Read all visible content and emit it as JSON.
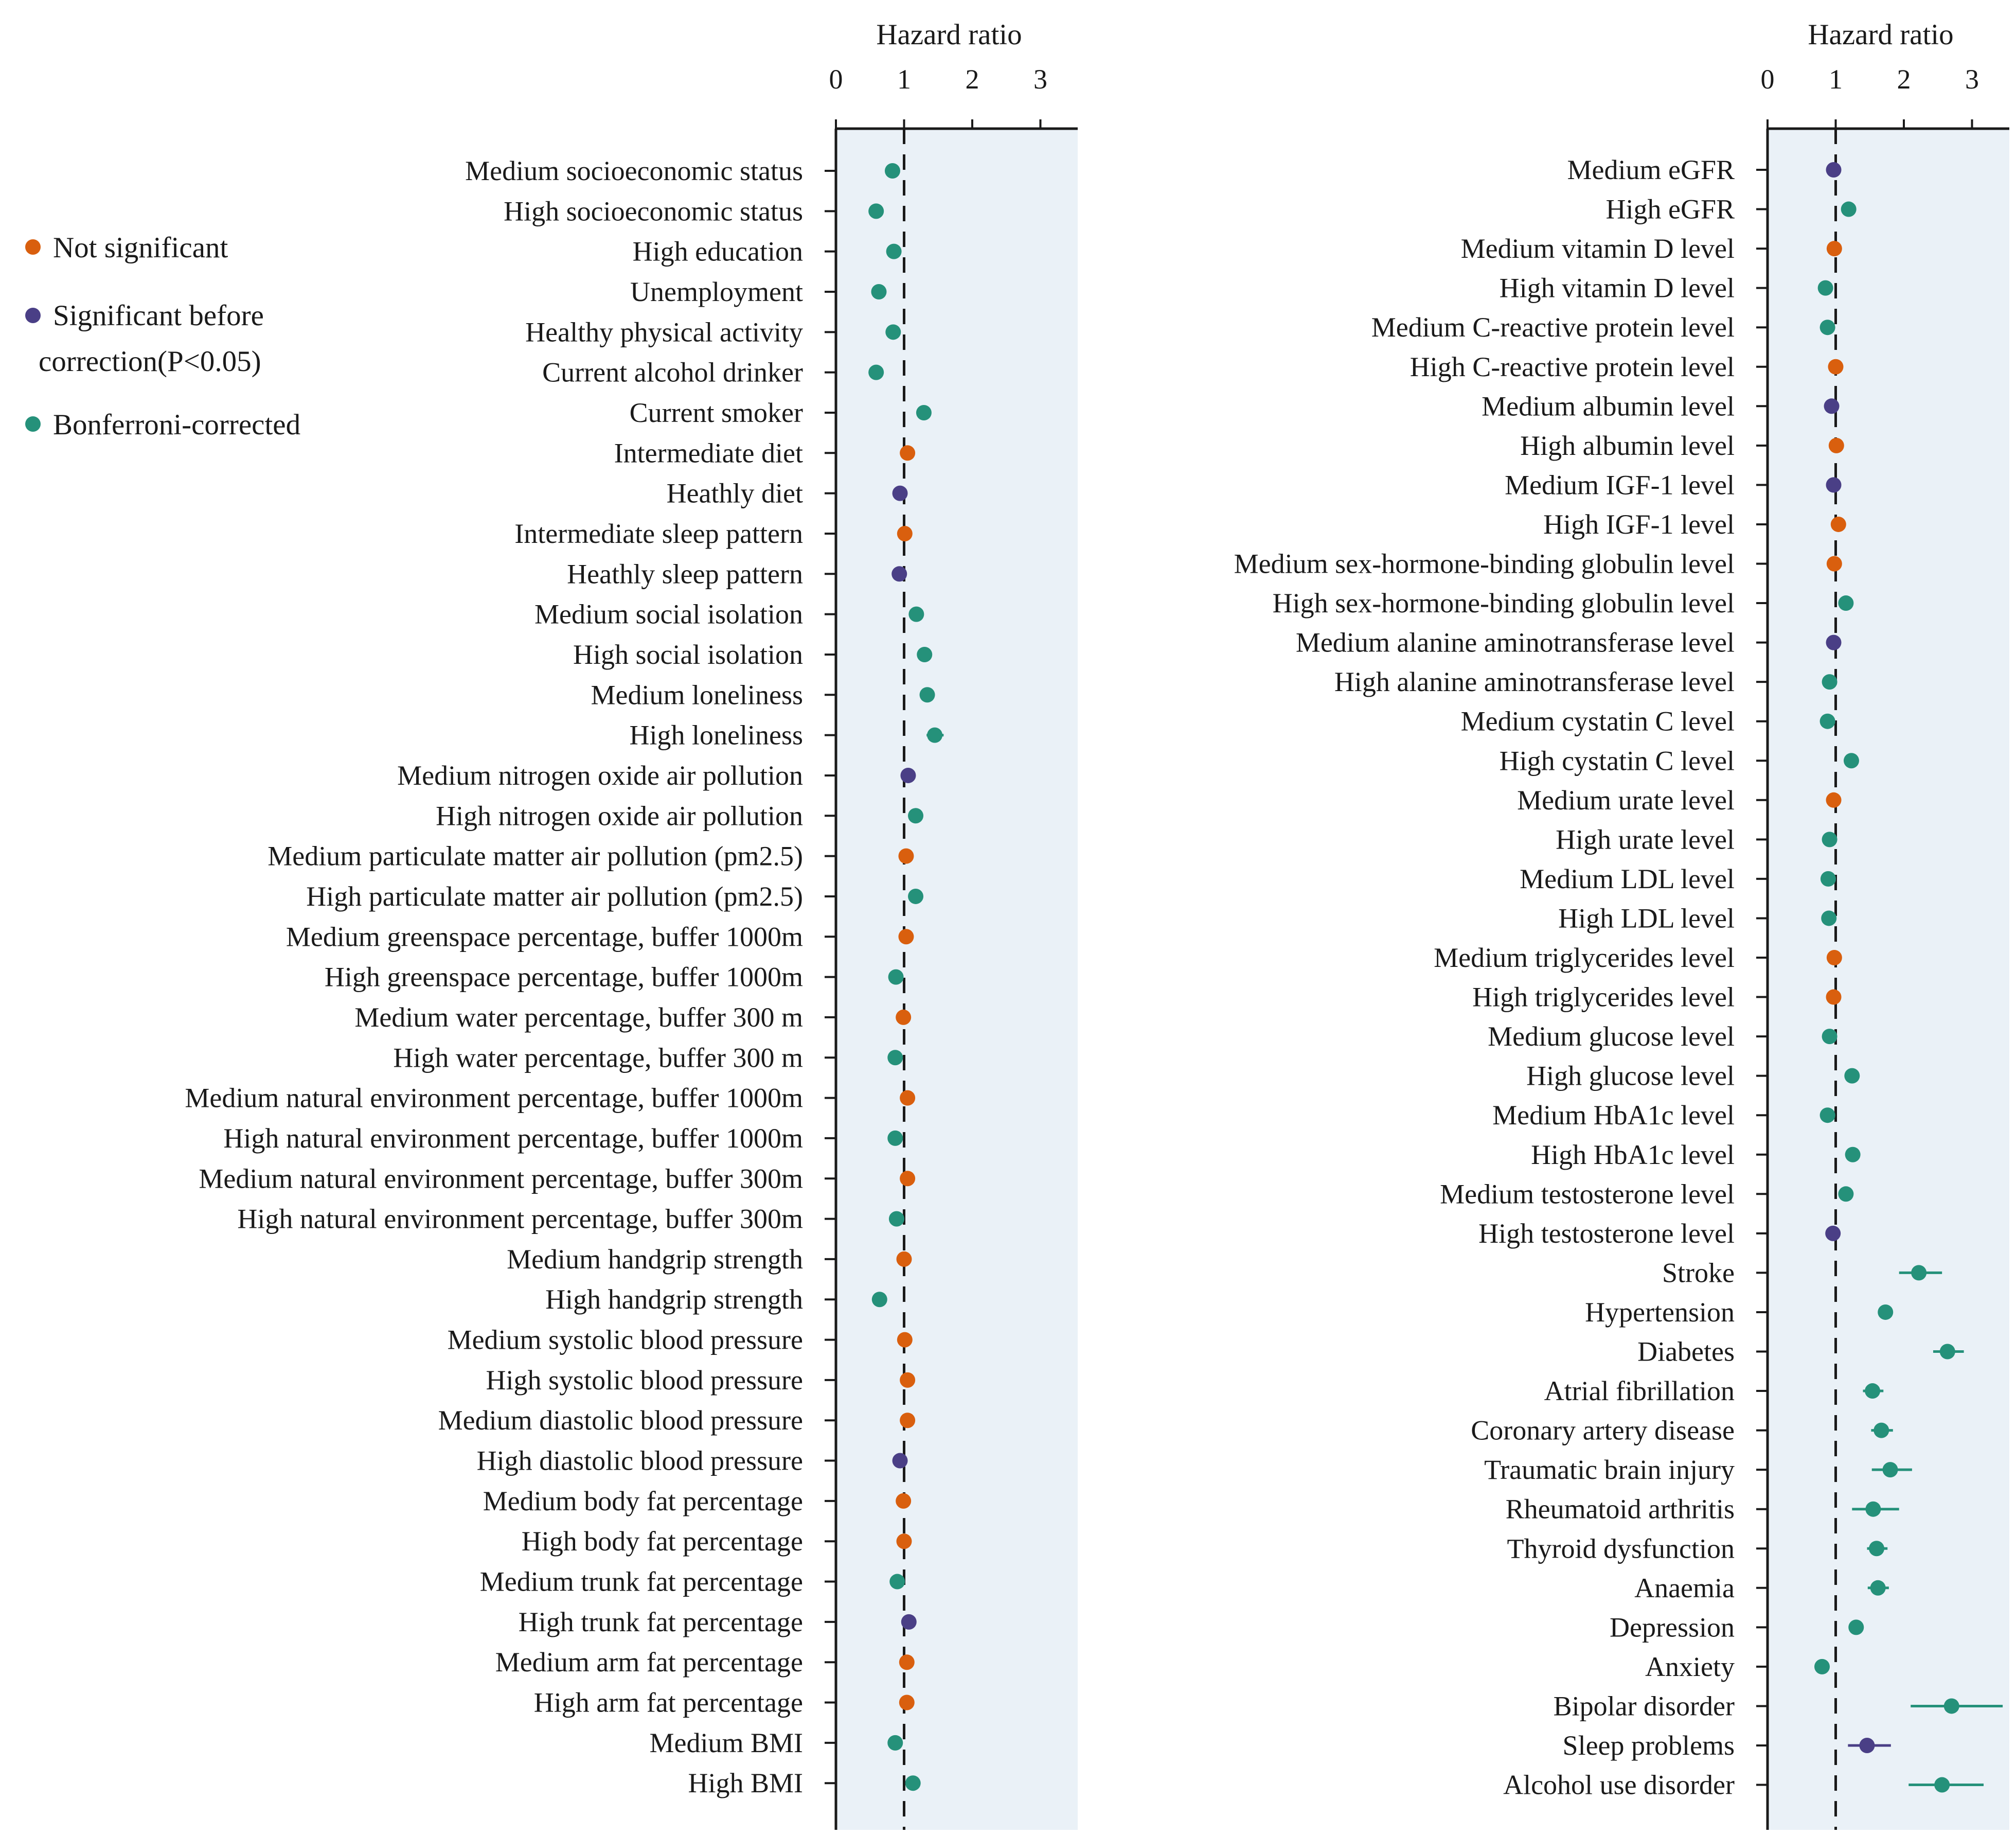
{
  "legend": {
    "items": [
      {
        "label": "Not significant",
        "key": "ns"
      },
      {
        "label": "Significant before correction(P<0.05)",
        "key": "sig"
      },
      {
        "label": "Bonferroni-corrected",
        "key": "bonf"
      }
    ]
  },
  "colors": {
    "ns": "#d95f0e",
    "sig": "#4a3f86",
    "bonf": "#25917a",
    "panel_bg": "#eaf1f7",
    "axis": "#1a1a1a"
  },
  "chart_data": [
    {
      "type": "forest",
      "xlabel": "Hazard ratio",
      "xlim": [
        0,
        3.5
      ],
      "xticks": [
        0,
        1,
        2,
        3
      ],
      "reference_line": 1,
      "rows": [
        {
          "label": "Medium socioeconomic status",
          "hr": 0.83,
          "lo": 0.78,
          "hi": 0.88,
          "sig": "bonf"
        },
        {
          "label": "High socioeconomic status",
          "hr": 0.59,
          "lo": 0.55,
          "hi": 0.63,
          "sig": "bonf"
        },
        {
          "label": "High education",
          "hr": 0.85,
          "lo": 0.8,
          "hi": 0.9,
          "sig": "bonf"
        },
        {
          "label": "Unemployment",
          "hr": 0.63,
          "lo": 0.58,
          "hi": 0.68,
          "sig": "bonf"
        },
        {
          "label": "Healthy physical activity",
          "hr": 0.84,
          "lo": 0.79,
          "hi": 0.89,
          "sig": "bonf"
        },
        {
          "label": "Current alcohol drinker",
          "hr": 0.59,
          "lo": 0.55,
          "hi": 0.63,
          "sig": "bonf"
        },
        {
          "label": "Current smoker",
          "hr": 1.29,
          "lo": 1.2,
          "hi": 1.38,
          "sig": "bonf"
        },
        {
          "label": "Intermediate diet",
          "hr": 1.05,
          "lo": 0.98,
          "hi": 1.12,
          "sig": "ns"
        },
        {
          "label": "Heathly diet",
          "hr": 0.94,
          "lo": 0.88,
          "hi": 1.0,
          "sig": "sig"
        },
        {
          "label": "Intermediate sleep pattern",
          "hr": 1.01,
          "lo": 0.95,
          "hi": 1.07,
          "sig": "ns"
        },
        {
          "label": "Heathly sleep pattern",
          "hr": 0.93,
          "lo": 0.87,
          "hi": 0.99,
          "sig": "sig"
        },
        {
          "label": "Medium social isolation",
          "hr": 1.18,
          "lo": 1.11,
          "hi": 1.25,
          "sig": "bonf"
        },
        {
          "label": "High social isolation",
          "hr": 1.3,
          "lo": 1.21,
          "hi": 1.39,
          "sig": "bonf"
        },
        {
          "label": "Medium loneliness",
          "hr": 1.34,
          "lo": 1.26,
          "hi": 1.42,
          "sig": "bonf"
        },
        {
          "label": "High loneliness",
          "hr": 1.45,
          "lo": 1.33,
          "hi": 1.58,
          "sig": "bonf"
        },
        {
          "label": "Medium nitrogen oxide air pollution",
          "hr": 1.06,
          "lo": 1.0,
          "hi": 1.12,
          "sig": "sig"
        },
        {
          "label": "High nitrogen oxide air pollution",
          "hr": 1.17,
          "lo": 1.09,
          "hi": 1.25,
          "sig": "bonf"
        },
        {
          "label": "Medium particulate matter air pollution (pm2.5)",
          "hr": 1.03,
          "lo": 0.97,
          "hi": 1.09,
          "sig": "ns"
        },
        {
          "label": "High particulate matter air pollution (pm2.5)",
          "hr": 1.17,
          "lo": 1.09,
          "hi": 1.25,
          "sig": "bonf"
        },
        {
          "label": "Medium greenspace percentage, buffer 1000m",
          "hr": 1.03,
          "lo": 0.97,
          "hi": 1.09,
          "sig": "ns"
        },
        {
          "label": "High greenspace percentage, buffer 1000m",
          "hr": 0.88,
          "lo": 0.82,
          "hi": 0.94,
          "sig": "bonf"
        },
        {
          "label": "Medium water percentage, buffer 300 m",
          "hr": 0.99,
          "lo": 0.93,
          "hi": 1.05,
          "sig": "ns"
        },
        {
          "label": "High water percentage, buffer 300 m",
          "hr": 0.87,
          "lo": 0.81,
          "hi": 0.93,
          "sig": "bonf"
        },
        {
          "label": "Medium natural environment percentage, buffer 1000m",
          "hr": 1.05,
          "lo": 0.98,
          "hi": 1.12,
          "sig": "ns"
        },
        {
          "label": "High natural environment percentage, buffer 1000m",
          "hr": 0.87,
          "lo": 0.81,
          "hi": 0.93,
          "sig": "bonf"
        },
        {
          "label": "Medium natural environment percentage, buffer 300m",
          "hr": 1.05,
          "lo": 0.98,
          "hi": 1.12,
          "sig": "ns"
        },
        {
          "label": "High natural environment percentage, buffer 300m",
          "hr": 0.89,
          "lo": 0.83,
          "hi": 0.95,
          "sig": "bonf"
        },
        {
          "label": "Medium handgrip strength",
          "hr": 1.0,
          "lo": 0.94,
          "hi": 1.06,
          "sig": "ns"
        },
        {
          "label": "High handgrip strength",
          "hr": 0.64,
          "lo": 0.59,
          "hi": 0.69,
          "sig": "bonf"
        },
        {
          "label": "Medium systolic blood pressure",
          "hr": 1.01,
          "lo": 0.95,
          "hi": 1.07,
          "sig": "ns"
        },
        {
          "label": "High systolic blood pressure",
          "hr": 1.05,
          "lo": 0.98,
          "hi": 1.12,
          "sig": "ns"
        },
        {
          "label": "Medium diastolic blood pressure",
          "hr": 1.05,
          "lo": 0.98,
          "hi": 1.12,
          "sig": "ns"
        },
        {
          "label": "High diastolic blood pressure",
          "hr": 0.94,
          "lo": 0.88,
          "hi": 1.0,
          "sig": "sig"
        },
        {
          "label": "Medium body fat percentage",
          "hr": 0.99,
          "lo": 0.93,
          "hi": 1.05,
          "sig": "ns"
        },
        {
          "label": "High body fat percentage",
          "hr": 1.0,
          "lo": 0.94,
          "hi": 1.06,
          "sig": "ns"
        },
        {
          "label": "Medium trunk fat percentage",
          "hr": 0.9,
          "lo": 0.84,
          "hi": 0.96,
          "sig": "bonf"
        },
        {
          "label": "High trunk fat percentage",
          "hr": 1.07,
          "lo": 1.0,
          "hi": 1.14,
          "sig": "sig"
        },
        {
          "label": "Medium arm fat percentage",
          "hr": 1.04,
          "lo": 0.98,
          "hi": 1.1,
          "sig": "ns"
        },
        {
          "label": "High arm fat percentage",
          "hr": 1.04,
          "lo": 0.98,
          "hi": 1.1,
          "sig": "ns"
        },
        {
          "label": "Medium BMI",
          "hr": 0.87,
          "lo": 0.81,
          "hi": 0.93,
          "sig": "bonf"
        },
        {
          "label": "High BMI",
          "hr": 1.13,
          "lo": 1.05,
          "hi": 1.21,
          "sig": "bonf"
        }
      ]
    },
    {
      "type": "forest",
      "xlabel": "Hazard ratio",
      "xlim": [
        0,
        3.5
      ],
      "xticks": [
        0,
        1,
        2,
        3
      ],
      "reference_line": 1,
      "rows": [
        {
          "label": "Medium eGFR",
          "hr": 0.97,
          "lo": 0.91,
          "hi": 1.03,
          "sig": "sig"
        },
        {
          "label": "High eGFR",
          "hr": 1.19,
          "lo": 1.11,
          "hi": 1.27,
          "sig": "bonf"
        },
        {
          "label": "Medium vitamin D level",
          "hr": 0.98,
          "lo": 0.92,
          "hi": 1.04,
          "sig": "ns"
        },
        {
          "label": "High vitamin D level",
          "hr": 0.85,
          "lo": 0.8,
          "hi": 0.9,
          "sig": "bonf"
        },
        {
          "label": "Medium C-reactive protein level",
          "hr": 0.88,
          "lo": 0.82,
          "hi": 0.94,
          "sig": "bonf"
        },
        {
          "label": "High C-reactive protein level",
          "hr": 1.0,
          "lo": 0.94,
          "hi": 1.06,
          "sig": "ns"
        },
        {
          "label": "Medium albumin level",
          "hr": 0.94,
          "lo": 0.88,
          "hi": 1.0,
          "sig": "sig"
        },
        {
          "label": "High albumin level",
          "hr": 1.01,
          "lo": 0.95,
          "hi": 1.07,
          "sig": "ns"
        },
        {
          "label": "Medium IGF-1 level",
          "hr": 0.97,
          "lo": 0.91,
          "hi": 1.03,
          "sig": "sig"
        },
        {
          "label": "High IGF-1 level",
          "hr": 1.04,
          "lo": 0.98,
          "hi": 1.1,
          "sig": "ns"
        },
        {
          "label": "Medium sex-hormone-binding globulin level",
          "hr": 0.98,
          "lo": 0.92,
          "hi": 1.04,
          "sig": "ns"
        },
        {
          "label": "High sex-hormone-binding globulin level",
          "hr": 1.15,
          "lo": 1.08,
          "hi": 1.22,
          "sig": "bonf"
        },
        {
          "label": "Medium alanine aminotransferase level",
          "hr": 0.97,
          "lo": 0.91,
          "hi": 1.03,
          "sig": "sig"
        },
        {
          "label": "High alanine aminotransferase level",
          "hr": 0.91,
          "lo": 0.85,
          "hi": 0.97,
          "sig": "bonf"
        },
        {
          "label": "Medium cystatin C level",
          "hr": 0.88,
          "lo": 0.82,
          "hi": 0.94,
          "sig": "bonf"
        },
        {
          "label": "High cystatin C level",
          "hr": 1.23,
          "lo": 1.15,
          "hi": 1.31,
          "sig": "bonf"
        },
        {
          "label": "Medium urate level",
          "hr": 0.97,
          "lo": 0.91,
          "hi": 1.03,
          "sig": "ns"
        },
        {
          "label": "High urate level",
          "hr": 0.91,
          "lo": 0.85,
          "hi": 0.97,
          "sig": "bonf"
        },
        {
          "label": "Medium LDL level",
          "hr": 0.89,
          "lo": 0.83,
          "hi": 0.95,
          "sig": "bonf"
        },
        {
          "label": "High LDL level",
          "hr": 0.9,
          "lo": 0.84,
          "hi": 0.96,
          "sig": "bonf"
        },
        {
          "label": "Medium triglycerides level",
          "hr": 0.98,
          "lo": 0.92,
          "hi": 1.04,
          "sig": "ns"
        },
        {
          "label": "High triglycerides level",
          "hr": 0.97,
          "lo": 0.91,
          "hi": 1.03,
          "sig": "ns"
        },
        {
          "label": "Medium glucose level",
          "hr": 0.91,
          "lo": 0.85,
          "hi": 0.97,
          "sig": "bonf"
        },
        {
          "label": "High glucose level",
          "hr": 1.24,
          "lo": 1.16,
          "hi": 1.32,
          "sig": "bonf"
        },
        {
          "label": "Medium HbA1c level",
          "hr": 0.88,
          "lo": 0.82,
          "hi": 0.94,
          "sig": "bonf"
        },
        {
          "label": "High HbA1c level",
          "hr": 1.25,
          "lo": 1.16,
          "hi": 1.34,
          "sig": "bonf"
        },
        {
          "label": "Medium testosterone level",
          "hr": 1.15,
          "lo": 1.08,
          "hi": 1.22,
          "sig": "bonf"
        },
        {
          "label": "High testosterone level",
          "hr": 0.96,
          "lo": 0.9,
          "hi": 1.02,
          "sig": "sig"
        },
        {
          "label": "Stroke",
          "hr": 2.22,
          "lo": 1.93,
          "hi": 2.56,
          "sig": "bonf"
        },
        {
          "label": "Hypertension",
          "hr": 1.73,
          "lo": 1.63,
          "hi": 1.83,
          "sig": "bonf"
        },
        {
          "label": "Diabetes",
          "hr": 2.64,
          "lo": 2.43,
          "hi": 2.88,
          "sig": "bonf"
        },
        {
          "label": "Atrial fibrillation",
          "hr": 1.54,
          "lo": 1.4,
          "hi": 1.7,
          "sig": "bonf"
        },
        {
          "label": "Coronary artery disease",
          "hr": 1.67,
          "lo": 1.52,
          "hi": 1.84,
          "sig": "bonf"
        },
        {
          "label": "Traumatic brain injury",
          "hr": 1.8,
          "lo": 1.53,
          "hi": 2.12,
          "sig": "bonf"
        },
        {
          "label": "Rheumatoid arthritis",
          "hr": 1.55,
          "lo": 1.24,
          "hi": 1.93,
          "sig": "bonf"
        },
        {
          "label": "Thyroid dysfunction",
          "hr": 1.6,
          "lo": 1.46,
          "hi": 1.76,
          "sig": "bonf"
        },
        {
          "label": "Anaemia",
          "hr": 1.62,
          "lo": 1.47,
          "hi": 1.78,
          "sig": "bonf"
        },
        {
          "label": "Depression",
          "hr": 1.3,
          "lo": 1.21,
          "hi": 1.4,
          "sig": "bonf"
        },
        {
          "label": "Anxiety",
          "hr": 0.8,
          "lo": 0.74,
          "hi": 0.87,
          "sig": "bonf"
        },
        {
          "label": "Bipolar disorder",
          "hr": 2.7,
          "lo": 2.1,
          "hi": 3.45,
          "sig": "bonf"
        },
        {
          "label": "Sleep problems",
          "hr": 1.46,
          "lo": 1.18,
          "hi": 1.81,
          "sig": "sig"
        },
        {
          "label": "Alcohol use disorder",
          "hr": 2.56,
          "lo": 2.07,
          "hi": 3.17,
          "sig": "bonf"
        }
      ]
    }
  ]
}
